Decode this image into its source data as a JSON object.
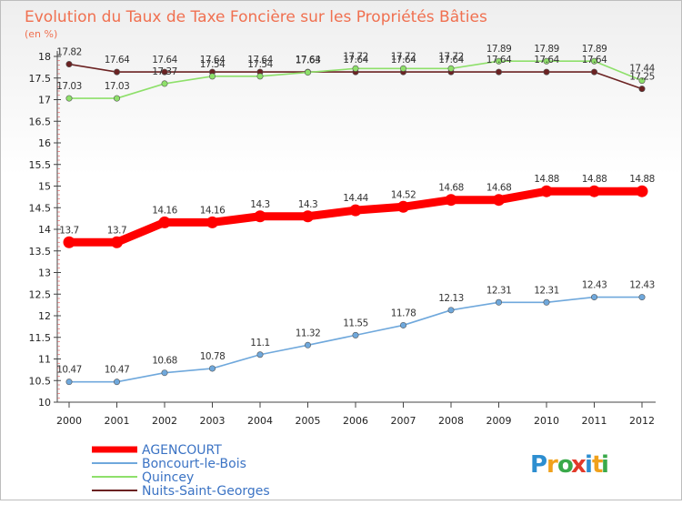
{
  "chart_data": {
    "type": "line",
    "title": "Evolution du Taux de Taxe Foncière sur les Propriétés Bâties",
    "subtitle": "(en %)",
    "xlabel": "",
    "ylabel": "",
    "x": [
      "2000",
      "2001",
      "2002",
      "2003",
      "2004",
      "2005",
      "2006",
      "2007",
      "2008",
      "2009",
      "2010",
      "2011",
      "2012"
    ],
    "ylim": [
      10,
      18
    ],
    "yticks": [
      "10",
      "10.5",
      "11",
      "11.5",
      "12",
      "12.5",
      "13",
      "13.5",
      "14",
      "14.5",
      "15",
      "15.5",
      "16",
      "16.5",
      "17",
      "17.5",
      "18"
    ],
    "grid": false,
    "legend_position": "bottom-left",
    "series": [
      {
        "name": "AGENCOURT",
        "color": "#ff0000",
        "values": [
          13.7,
          13.7,
          14.16,
          14.16,
          14.3,
          14.3,
          14.44,
          14.52,
          14.68,
          14.68,
          14.88,
          14.88,
          14.88
        ],
        "labels": [
          "13.7",
          "13.7",
          "14.16",
          "14.16",
          "14.3",
          "14.3",
          "14.44",
          "14.52",
          "14.68",
          "14.68",
          "14.88",
          "14.88",
          "14.88"
        ]
      },
      {
        "name": "Boncourt-le-Bois",
        "color": "#6fa8dc",
        "values": [
          10.47,
          10.47,
          10.68,
          10.78,
          11.1,
          11.32,
          11.55,
          11.78,
          12.13,
          12.31,
          12.31,
          12.43,
          12.43
        ],
        "labels": [
          "10.47",
          "10.47",
          "10.68",
          "10.78",
          "11.1",
          "11.32",
          "11.55",
          "11.78",
          "12.13",
          "12.31",
          "12.31",
          "12.43",
          "12.43"
        ]
      },
      {
        "name": "Quincey",
        "color": "#8ee06a",
        "values": [
          17.03,
          17.03,
          17.37,
          17.54,
          17.54,
          17.63,
          17.72,
          17.72,
          17.72,
          17.89,
          17.89,
          17.89,
          17.44
        ],
        "labels": [
          "17.03",
          "17.03",
          "17.37",
          "17.54",
          "17.54",
          "17.63",
          "17.72",
          "17.72",
          "17.72",
          "17.89",
          "17.89",
          "17.89",
          "17.44"
        ]
      },
      {
        "name": "Nuits-Saint-Georges",
        "color": "#6b2222",
        "values": [
          17.82,
          17.64,
          17.64,
          17.64,
          17.64,
          17.64,
          17.64,
          17.64,
          17.64,
          17.64,
          17.64,
          17.64,
          17.25
        ],
        "labels": [
          "17.82",
          "17.64",
          "17.64",
          "17.64",
          "17.64",
          "17.64",
          "17.64",
          "17.64",
          "17.64",
          "17.64",
          "17.64",
          "17.64",
          "17.25"
        ]
      }
    ]
  },
  "brand": {
    "text": "Proxiti",
    "letters": [
      "P",
      "r",
      "o",
      "x",
      "i",
      "t",
      "i"
    ],
    "colors": [
      "#2d8ed0",
      "#f0a11c",
      "#3aa94a",
      "#e23a2a",
      "#2d8ed0",
      "#f0a11c",
      "#3aa94a"
    ]
  }
}
